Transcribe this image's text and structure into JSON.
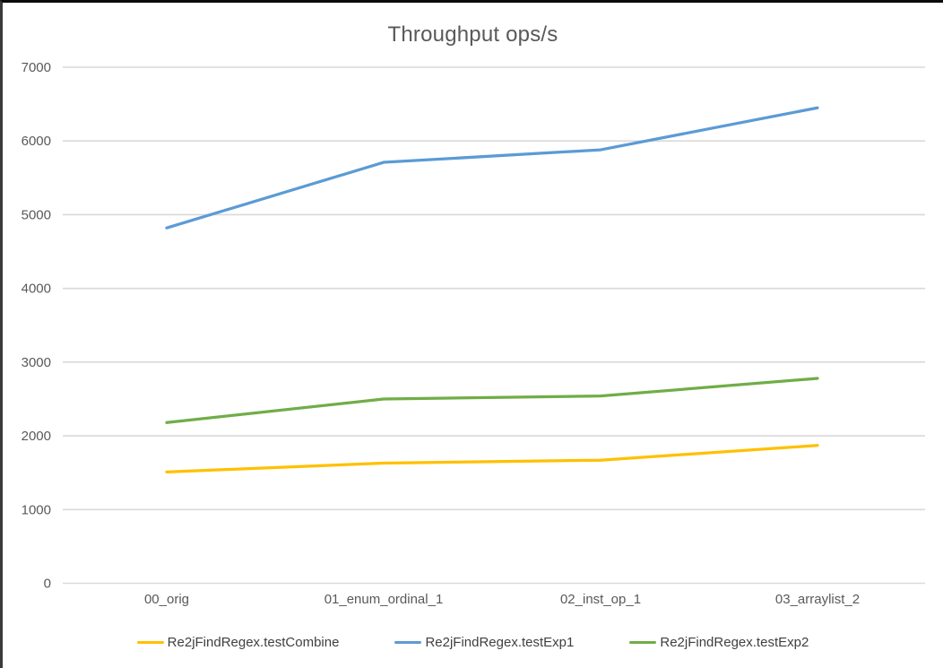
{
  "title": "Throughput ops/s",
  "chart_data": {
    "type": "line",
    "title": "Throughput ops/s",
    "categories": [
      "00_orig",
      "01_enum_ordinal_1",
      "02_inst_op_1",
      "03_arraylist_2"
    ],
    "series": [
      {
        "name": "Re2jFindRegex.testCombine",
        "color": "#FFC000",
        "values": [
          1510,
          1630,
          1670,
          1870
        ]
      },
      {
        "name": "Re2jFindRegex.testExp1",
        "color": "#5B9BD5",
        "values": [
          4820,
          5710,
          5880,
          6450
        ]
      },
      {
        "name": "Re2jFindRegex.testExp2",
        "color": "#70AD47",
        "values": [
          2180,
          2500,
          2540,
          2780
        ]
      }
    ],
    "xlabel": "",
    "ylabel": "",
    "ylim": [
      0,
      7000
    ],
    "ytick_interval": 1000,
    "yticks": [
      "0",
      "1000",
      "2000",
      "3000",
      "4000",
      "5000",
      "6000",
      "7000"
    ],
    "grid": true,
    "legend_position": "bottom"
  },
  "colors": {
    "background": "#FFFFFF",
    "frame": "#000000",
    "gridline": "#D9D9D9",
    "axis_text": "#595959",
    "title_text": "#595959",
    "legend_text": "#404040"
  }
}
